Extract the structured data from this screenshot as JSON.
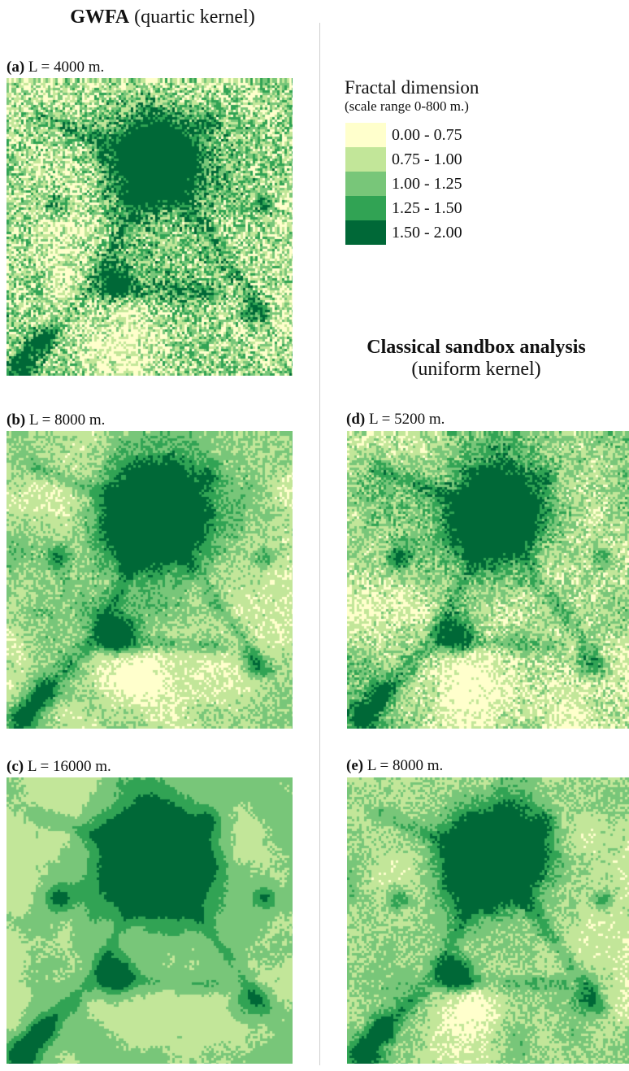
{
  "left_heading": {
    "bold": "GWFA",
    "normal": " (quartic kernel)"
  },
  "right_heading": {
    "bold": "Classical sandbox analysis",
    "normal": "(uniform kernel)"
  },
  "legend": {
    "title": "Fractal dimension",
    "subtitle": "(scale range 0-800 m.)",
    "classes": [
      {
        "label": "0.00 - 0.75",
        "color": "#ffffcc"
      },
      {
        "label": "0.75 - 1.00",
        "color": "#c2e699"
      },
      {
        "label": "1.00 - 1.25",
        "color": "#78c679"
      },
      {
        "label": "1.25 - 1.50",
        "color": "#31a354"
      },
      {
        "label": "1.50 - 2.00",
        "color": "#006837"
      }
    ]
  },
  "panels": [
    {
      "id": "a",
      "tag": "(a)",
      "text": " L = 4000 m.",
      "detail": 1.0
    },
    {
      "id": "b",
      "tag": "(b)",
      "text": " L = 8000 m.",
      "detail": 0.6
    },
    {
      "id": "c",
      "tag": "(c)",
      "text": " L = 16000 m.",
      "detail": 0.3
    },
    {
      "id": "d",
      "tag": "(d)",
      "text": " L = 5200 m.",
      "detail": 0.75
    },
    {
      "id": "e",
      "tag": "(e)",
      "text": " L = 8000 m.",
      "detail": 0.55
    }
  ]
}
